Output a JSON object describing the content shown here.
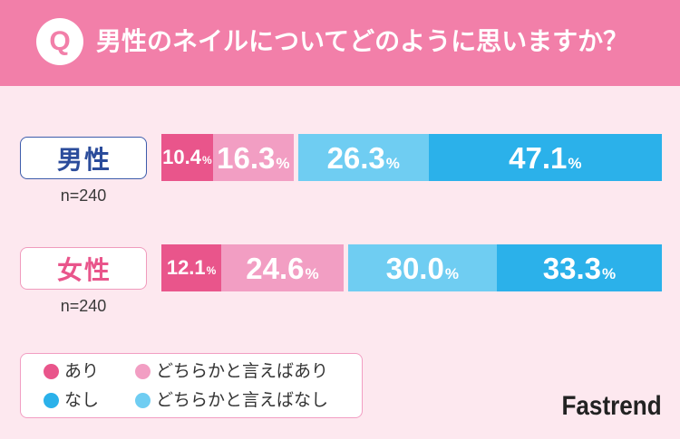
{
  "header": {
    "q_label": "Q",
    "question": "男性のネイルについてどのように思いますか？"
  },
  "chart_data": {
    "type": "bar",
    "orientation": "horizontal",
    "stacked": true,
    "categories": [
      "男性",
      "女性"
    ],
    "sample_sizes": [
      "n=240",
      "n=240"
    ],
    "unit": "%",
    "series": [
      {
        "name": "あり",
        "values": [
          10.4,
          12.1
        ],
        "color": "#e9558b"
      },
      {
        "name": "どちらかと言えばあり",
        "values": [
          16.3,
          24.6
        ],
        "color": "#f29ec3"
      },
      {
        "name": "どちらかと言えばなし",
        "values": [
          26.3,
          30.0
        ],
        "color": "#6fcdf2"
      },
      {
        "name": "なし",
        "values": [
          47.1,
          33.3
        ],
        "color": "#2bb1ea"
      }
    ],
    "xlim": [
      0,
      100
    ],
    "grid": false,
    "legend": "bottom-left"
  },
  "brand": {
    "name": "Fastrend"
  },
  "colors": {
    "header_bg": "#f27fa9",
    "page_bg": "#fde8ef",
    "male_label": "#2b4c9b",
    "male_border": "#3d5cab",
    "female_label": "#e9558b",
    "female_border": "#f09bbd",
    "legend_border": "#f29ec3",
    "brand_text": "#222222"
  }
}
